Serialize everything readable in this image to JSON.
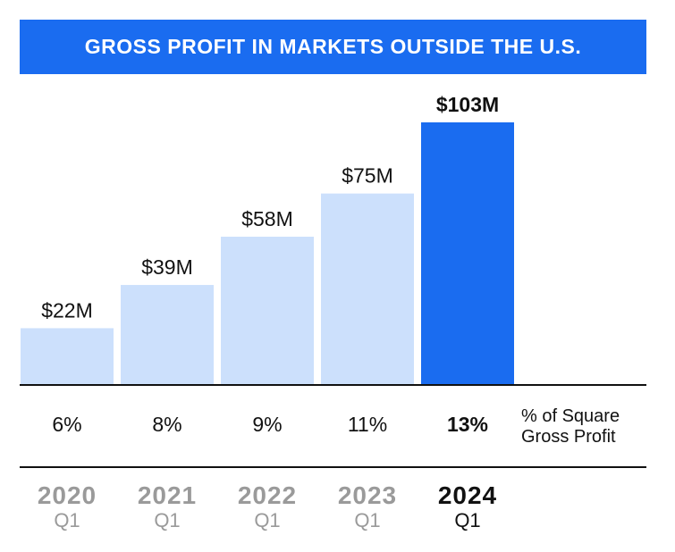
{
  "banner": {
    "title": "GROSS PROFIT IN MARKETS OUTSIDE THE U.S."
  },
  "colors": {
    "accent": "#1a6cf0",
    "bar": "#cce0fc",
    "highlight_bar": "#1a6cf0"
  },
  "chart_data": {
    "type": "bar",
    "title": "GROSS PROFIT IN MARKETS OUTSIDE THE U.S.",
    "unit": "$M",
    "categories": [
      "2020 Q1",
      "2021 Q1",
      "2022 Q1",
      "2023 Q1",
      "2024 Q1"
    ],
    "values": [
      22,
      39,
      58,
      75,
      103
    ],
    "value_labels": [
      "$22M",
      "$39M",
      "$58M",
      "$75M",
      "$103M"
    ],
    "highlight_index": 4,
    "ylim": [
      0,
      103
    ],
    "grid": false,
    "legend": "none",
    "share_label": "% of Square Gross Profit",
    "share_label_lines": [
      "% of Square",
      "Gross Profit"
    ],
    "share_values": [
      "6%",
      "8%",
      "9%",
      "11%",
      "13%"
    ],
    "years": [
      "2020",
      "2021",
      "2022",
      "2023",
      "2024"
    ],
    "quarters": [
      "Q1",
      "Q1",
      "Q1",
      "Q1",
      "Q1"
    ]
  }
}
